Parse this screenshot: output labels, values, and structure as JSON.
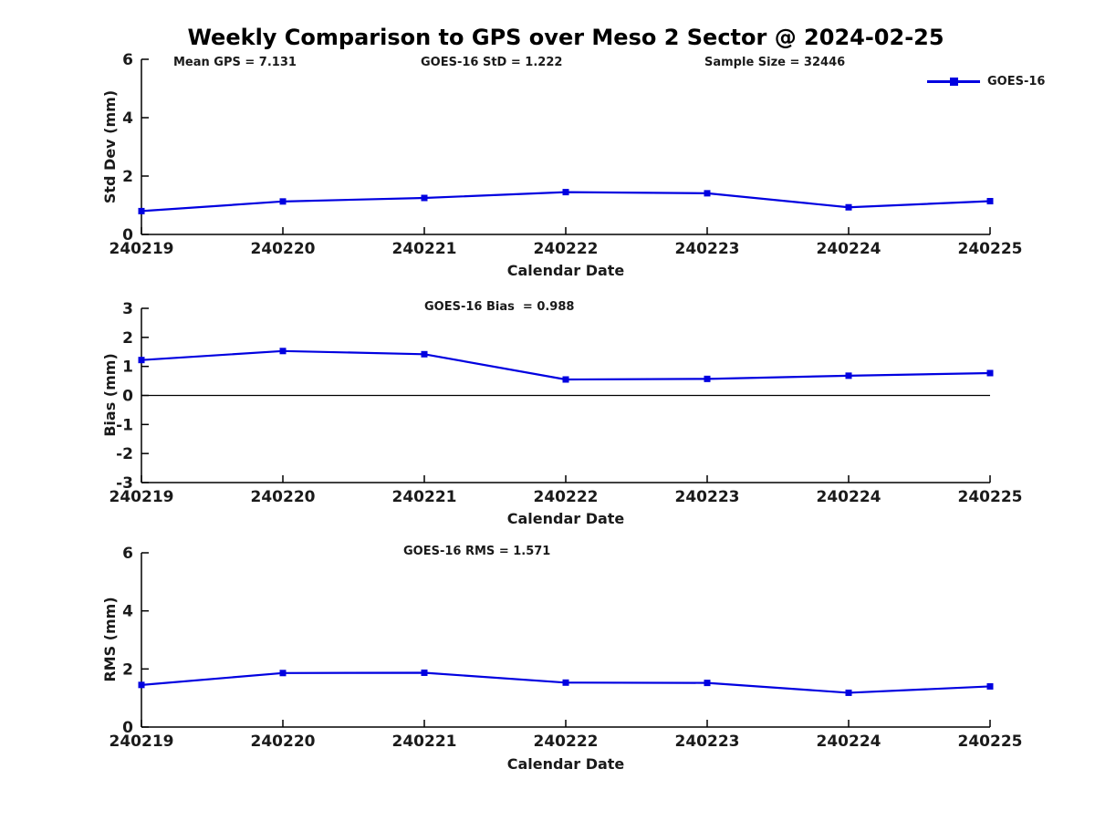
{
  "title": "Weekly Comparison to GPS over Meso 2 Sector @ 2024-02-25",
  "legend": {
    "label": "GOES-16",
    "color": "#0000E0",
    "position": "top-right",
    "marker": "square"
  },
  "chart_data": [
    {
      "type": "line",
      "name": "std-dev-panel",
      "categories": [
        "240219",
        "240220",
        "240221",
        "240222",
        "240223",
        "240224",
        "240225"
      ],
      "series": [
        {
          "name": "GOES-16",
          "values": [
            0.8,
            1.13,
            1.25,
            1.45,
            1.41,
            0.93,
            1.14
          ]
        }
      ],
      "annotations": {
        "mean_gps": "Mean GPS = 7.131",
        "goes16_std": "GOES-16 StD = 1.222",
        "sample_size": "Sample Size = 32446"
      },
      "xlabel": "Calendar Date",
      "ylabel": "Std Dev (mm)",
      "ylim": [
        0,
        6
      ],
      "yticks": [
        0,
        2,
        4,
        6
      ],
      "grid": false,
      "line_color": "#0000E0",
      "marker": "square"
    },
    {
      "type": "line",
      "name": "bias-panel",
      "subtitle": "GOES-16 Bias  = 0.988",
      "categories": [
        "240219",
        "240220",
        "240221",
        "240222",
        "240223",
        "240224",
        "240225"
      ],
      "series": [
        {
          "name": "GOES-16",
          "values": [
            1.22,
            1.53,
            1.42,
            0.55,
            0.57,
            0.68,
            0.77
          ]
        }
      ],
      "xlabel": "Calendar Date",
      "ylabel": "Bias (mm)",
      "ylim": [
        -3,
        3
      ],
      "yticks": [
        -3,
        -2,
        -1,
        0,
        1,
        2,
        3
      ],
      "zero_line": true,
      "grid": false,
      "line_color": "#0000E0",
      "marker": "square"
    },
    {
      "type": "line",
      "name": "rms-panel",
      "subtitle": "GOES-16 RMS = 1.571",
      "categories": [
        "240219",
        "240220",
        "240221",
        "240222",
        "240223",
        "240224",
        "240225"
      ],
      "series": [
        {
          "name": "GOES-16",
          "values": [
            1.45,
            1.86,
            1.87,
            1.53,
            1.52,
            1.18,
            1.4
          ]
        }
      ],
      "xlabel": "Calendar Date",
      "ylabel": "RMS (mm)",
      "ylim": [
        0,
        6
      ],
      "yticks": [
        0,
        2,
        4,
        6
      ],
      "grid": false,
      "line_color": "#0000E0",
      "marker": "square"
    }
  ]
}
